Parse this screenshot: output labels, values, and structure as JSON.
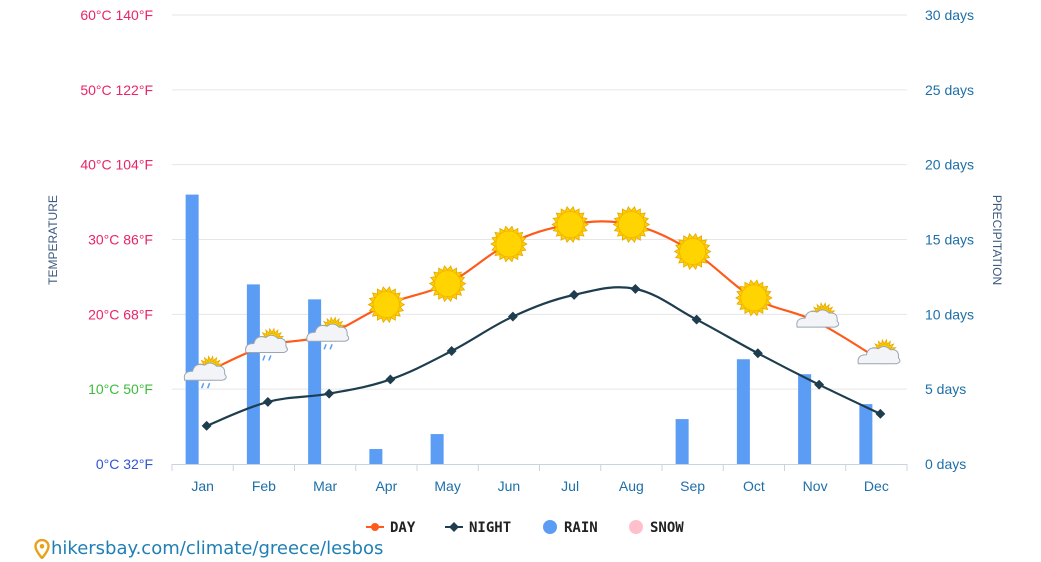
{
  "chart_data": {
    "type": "line",
    "categories": [
      "Jan",
      "Feb",
      "Mar",
      "Apr",
      "May",
      "Jun",
      "Jul",
      "Aug",
      "Sep",
      "Oct",
      "Nov",
      "Dec"
    ],
    "series": [
      {
        "name": "DAY",
        "type": "line",
        "color": "#ff5a1a",
        "values": [
          12,
          15.7,
          17.2,
          21.3,
          24.1,
          29.4,
          32,
          32,
          28.4,
          22.2,
          19.1,
          14.2
        ]
      },
      {
        "name": "NIGHT",
        "type": "line",
        "color": "#1e3d4f",
        "values": [
          5.1,
          8.3,
          9.4,
          11.3,
          15.1,
          19.7,
          22.6,
          23.4,
          19.3,
          14.8,
          10.6,
          6.7
        ]
      },
      {
        "name": "RAIN",
        "type": "bar",
        "axis": "right",
        "color": "#5b9cf5",
        "values": [
          18,
          12,
          11,
          1,
          2,
          0,
          0,
          0,
          3,
          7,
          6,
          4
        ]
      },
      {
        "name": "SNOW",
        "type": "bar",
        "axis": "right",
        "color": "#ffc0cb",
        "values": [
          0,
          0,
          0,
          0,
          0,
          0,
          0,
          0,
          0,
          0,
          0,
          0
        ]
      }
    ],
    "weather_icons": [
      "sun-cloud-rain",
      "sun-cloud-rain",
      "sun-cloud-rain",
      "sun",
      "sun",
      "sun",
      "sun",
      "sun",
      "sun",
      "sun",
      "sun-cloud",
      "sun-cloud"
    ],
    "ylabel": "TEMPERATURE",
    "y2label": "PRECIPITATION",
    "ylim": [
      0,
      60
    ],
    "y2lim": [
      0,
      30
    ],
    "left_ticks": [
      {
        "value": 0,
        "text": "0°C 32°F",
        "color": "#2f55d4"
      },
      {
        "value": 10,
        "text": "10°C 50°F",
        "color": "#3dbb3d"
      },
      {
        "value": 20,
        "text": "20°C 68°F",
        "color": "#ea2468"
      },
      {
        "value": 30,
        "text": "30°C 86°F",
        "color": "#ea2468"
      },
      {
        "value": 40,
        "text": "40°C 104°F",
        "color": "#ea2468"
      },
      {
        "value": 50,
        "text": "50°C 122°F",
        "color": "#ea2468"
      },
      {
        "value": 60,
        "text": "60°C 140°F",
        "color": "#ea2468"
      }
    ],
    "right_ticks": [
      {
        "value": 0,
        "text": "0 days"
      },
      {
        "value": 5,
        "text": "5 days"
      },
      {
        "value": 10,
        "text": "10 days"
      },
      {
        "value": 15,
        "text": "15 days"
      },
      {
        "value": 20,
        "text": "20 days"
      },
      {
        "value": 25,
        "text": "25 days"
      },
      {
        "value": 30,
        "text": "30 days"
      }
    ],
    "grid": true,
    "legend_position": "bottom"
  },
  "colors": {
    "axis_label": "#3c5a80",
    "right_tick": "#1d6fa8",
    "month_label": "#1d6fa8",
    "grid": "#e6e6e6",
    "sun": "#ffd400",
    "footer": "#1f7fb4"
  },
  "footer": {
    "url": "hikersbay.com/climate/greece/lesbos",
    "icon": "map-pin-icon"
  }
}
